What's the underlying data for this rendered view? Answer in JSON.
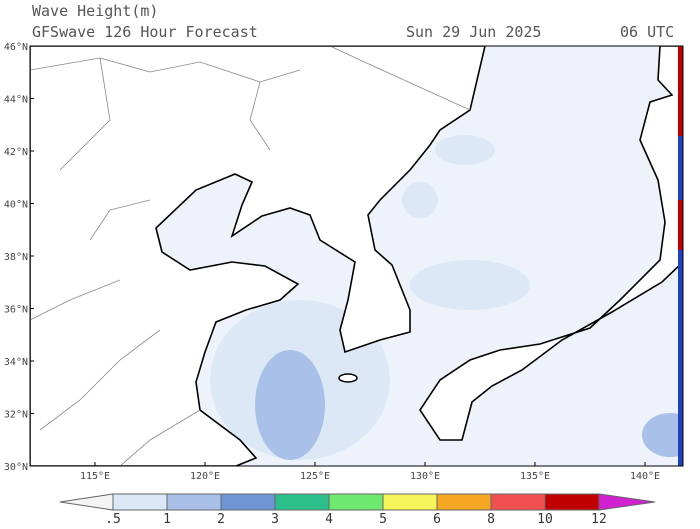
{
  "header": {
    "title": "Wave Height(m)",
    "subtitle": "GFSwave 126 Hour Forecast",
    "date": "Sun 29 Jun 2025",
    "time": "06 UTC"
  },
  "lat_labels": [
    "46°N",
    "44°N",
    "42°N",
    "40°N",
    "38°N",
    "36°N",
    "34°N",
    "32°N",
    "30°N"
  ],
  "lon_labels": [
    "115°E",
    "120°E",
    "125°E",
    "130°E",
    "135°E",
    "140°E"
  ],
  "colorbar": {
    "labels": [
      ".5",
      "1",
      "2",
      "3",
      "4",
      "5",
      "6",
      "8",
      "10",
      "12"
    ],
    "colors": [
      "#f4f4f4",
      "#dce8f6",
      "#a9c1e8",
      "#6e95d4",
      "#2dbf8b",
      "#6ee86e",
      "#f5f55a",
      "#f5a623",
      "#f05050",
      "#c00000",
      "#d020d0"
    ]
  }
}
